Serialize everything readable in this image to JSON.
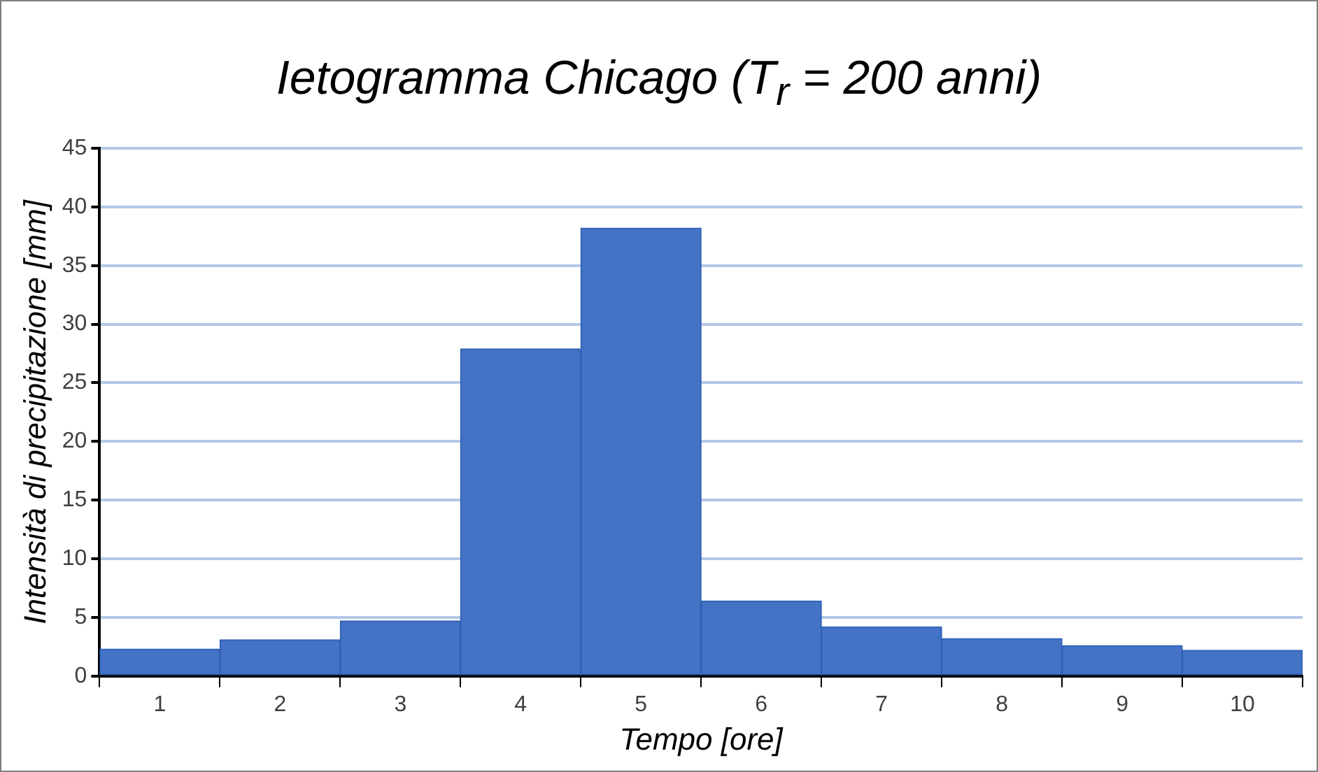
{
  "chart_data": {
    "type": "bar",
    "title": "Ietogramma Chicago (T$_{r}$ = 200 anni)",
    "xlabel": "Tempo [ore]",
    "ylabel": "Intensità di precipitazione [mm]",
    "categories": [
      "1",
      "2",
      "3",
      "4",
      "5",
      "6",
      "7",
      "8",
      "9",
      "10"
    ],
    "values": [
      2.3,
      3.1,
      4.7,
      27.9,
      38.2,
      6.4,
      4.2,
      3.2,
      2.6,
      2.2
    ],
    "color": "#4472c4",
    "ylim": [
      0,
      45
    ],
    "yticks": [
      0,
      5,
      10,
      15,
      20,
      25,
      30,
      35,
      40,
      45
    ],
    "grid": "y",
    "legend": false
  }
}
